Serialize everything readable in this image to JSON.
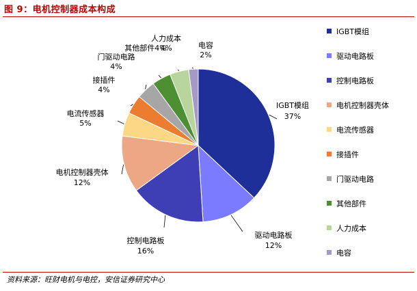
{
  "header": {
    "title": "图 9：电机控制器成本构成"
  },
  "footer": {
    "source": "资料来源：旺财电机与电控，安信证券研究中心"
  },
  "chart_data": {
    "type": "pie",
    "slices": [
      {
        "label": "IGBT模组",
        "value": 37,
        "value_label": "37%",
        "color": "#1f2f9a"
      },
      {
        "label": "驱动电路板",
        "value": 12,
        "value_label": "12%",
        "color": "#7b7bff"
      },
      {
        "label": "控制电路板",
        "value": 16,
        "value_label": "16%",
        "color": "#3f3fb5"
      },
      {
        "label": "电机控制器壳体",
        "value": 12,
        "value_label": "12%",
        "color": "#eda784"
      },
      {
        "label": "电流传感器",
        "value": 5,
        "value_label": "5%",
        "color": "#fcd786"
      },
      {
        "label": "接插件",
        "value": 4,
        "value_label": "4%",
        "color": "#ec7c30"
      },
      {
        "label": "门驱动电路",
        "value": 4,
        "value_label": "4%",
        "color": "#a6a6a6"
      },
      {
        "label": "其他部件",
        "value": 4,
        "value_label": "4%",
        "color": "#4e8f34"
      },
      {
        "label": "人力成本",
        "value": 4,
        "value_label": "4%",
        "color": "#b7d59d"
      },
      {
        "label": "电容",
        "value": 2,
        "value_label": "2%",
        "color": "#a59ac6"
      }
    ],
    "start_angle_deg": 0,
    "direction": "clockwise",
    "legend_position": "right"
  }
}
